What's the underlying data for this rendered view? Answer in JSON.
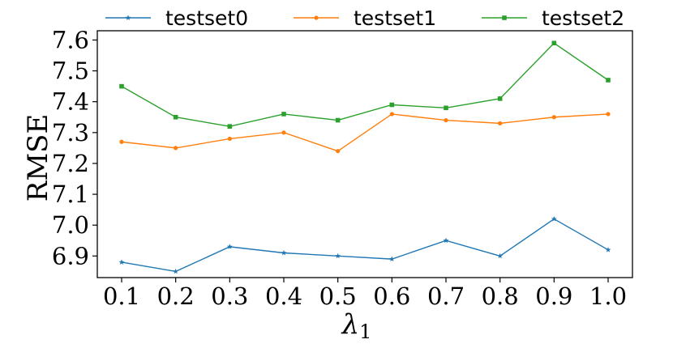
{
  "chart_data": {
    "type": "line",
    "x": [
      0.1,
      0.2,
      0.3,
      0.4,
      0.5,
      0.6,
      0.7,
      0.8,
      0.9,
      1.0
    ],
    "x_tick_labels": [
      "0.1",
      "0.2",
      "0.3",
      "0.4",
      "0.5",
      "0.6",
      "0.7",
      "0.8",
      "0.9",
      "1.0"
    ],
    "y_ticks": [
      6.9,
      7.0,
      7.1,
      7.2,
      7.3,
      7.4,
      7.5,
      7.6
    ],
    "y_tick_labels": [
      "6.9",
      "7.0",
      "7.1",
      "7.2",
      "7.3",
      "7.4",
      "7.5",
      "7.6"
    ],
    "ylim": [
      6.83,
      7.63
    ],
    "xlabel": "λ",
    "xlabel_subscript": "1",
    "ylabel": "RMSE",
    "grid": false,
    "legend_position": "top",
    "series": [
      {
        "name": "testset0",
        "color": "#1f77b4",
        "marker": "star",
        "values": [
          6.88,
          6.85,
          6.93,
          6.91,
          6.9,
          6.89,
          6.95,
          6.9,
          7.02,
          6.92
        ]
      },
      {
        "name": "testset1",
        "color": "#ff7f0e",
        "marker": "circle",
        "values": [
          7.27,
          7.25,
          7.28,
          7.3,
          7.24,
          7.36,
          7.34,
          7.33,
          7.35,
          7.36
        ]
      },
      {
        "name": "testset2",
        "color": "#2ca02c",
        "marker": "square",
        "values": [
          7.45,
          7.35,
          7.32,
          7.36,
          7.34,
          7.39,
          7.38,
          7.41,
          7.59,
          7.47
        ]
      }
    ]
  }
}
